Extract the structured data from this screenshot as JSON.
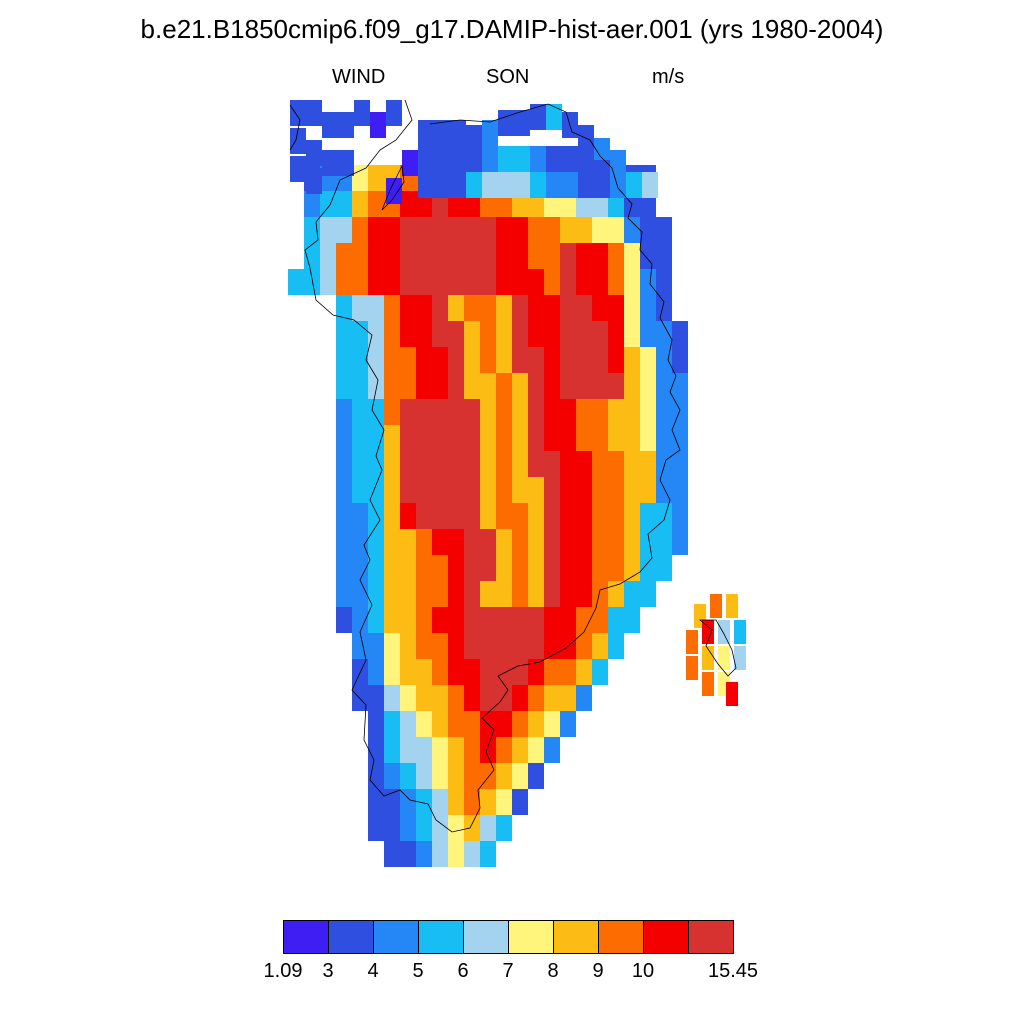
{
  "title": "b.e21.B1850cmip6.f09_g17.DAMIP-hist-aer.001 (yrs 1980-2004)",
  "subtitle": {
    "left": "WIND",
    "center": "SON",
    "right": "m/s"
  },
  "colorbar": {
    "colors": [
      "#3e1ef2",
      "#2f4fe0",
      "#2487f5",
      "#18bdf3",
      "#a3d3ef",
      "#fff47c",
      "#fdbc14",
      "#fd6c00",
      "#f50000",
      "#d7322f"
    ],
    "labels": [
      "1.09",
      "3",
      "4",
      "5",
      "6",
      "7",
      "8",
      "9",
      "10",
      "15.45"
    ]
  }
}
